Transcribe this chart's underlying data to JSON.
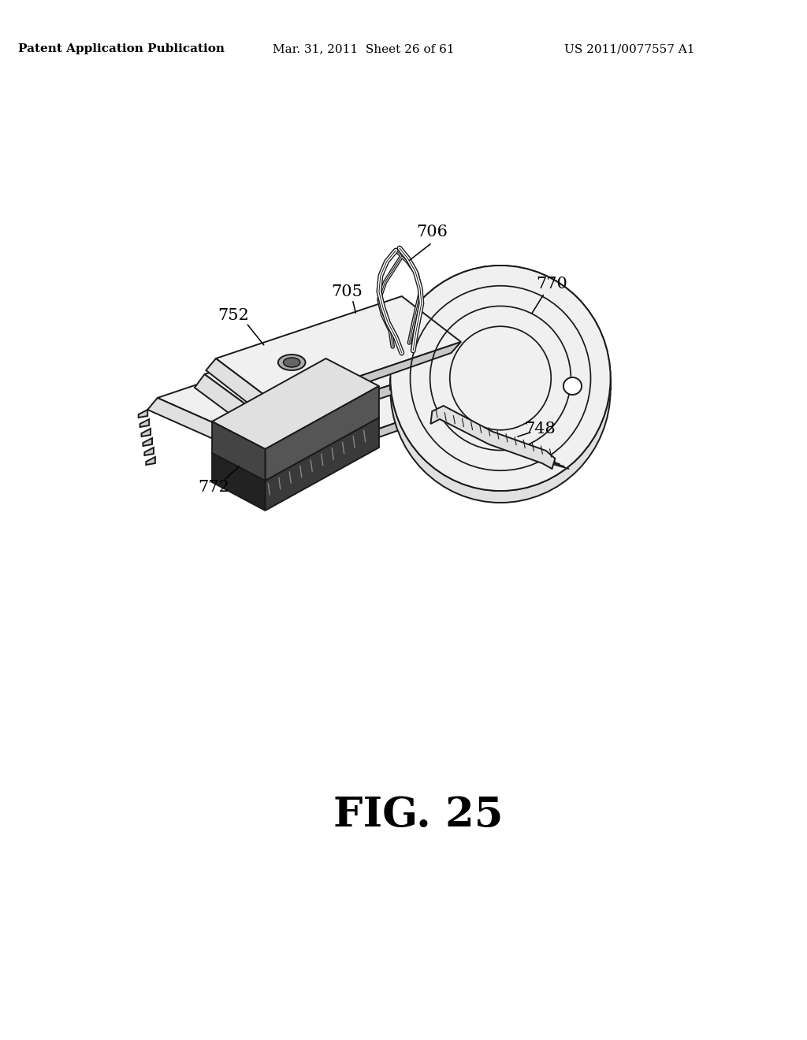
{
  "bg_color": "#ffffff",
  "header_left": "Patent Application Publication",
  "header_mid": "Mar. 31, 2011  Sheet 26 of 61",
  "header_right": "US 2011/0077557 A1",
  "fig_label": "FIG. 25",
  "line_color": "#1a1a1a",
  "fill_light": "#f0f0f0",
  "fill_mid": "#e0e0e0",
  "fill_dark": "#c8c8c8",
  "fill_darkest": "#888888",
  "lw": 1.4,
  "ann_fs": 15,
  "header_fs": 11,
  "fig_fs": 38
}
